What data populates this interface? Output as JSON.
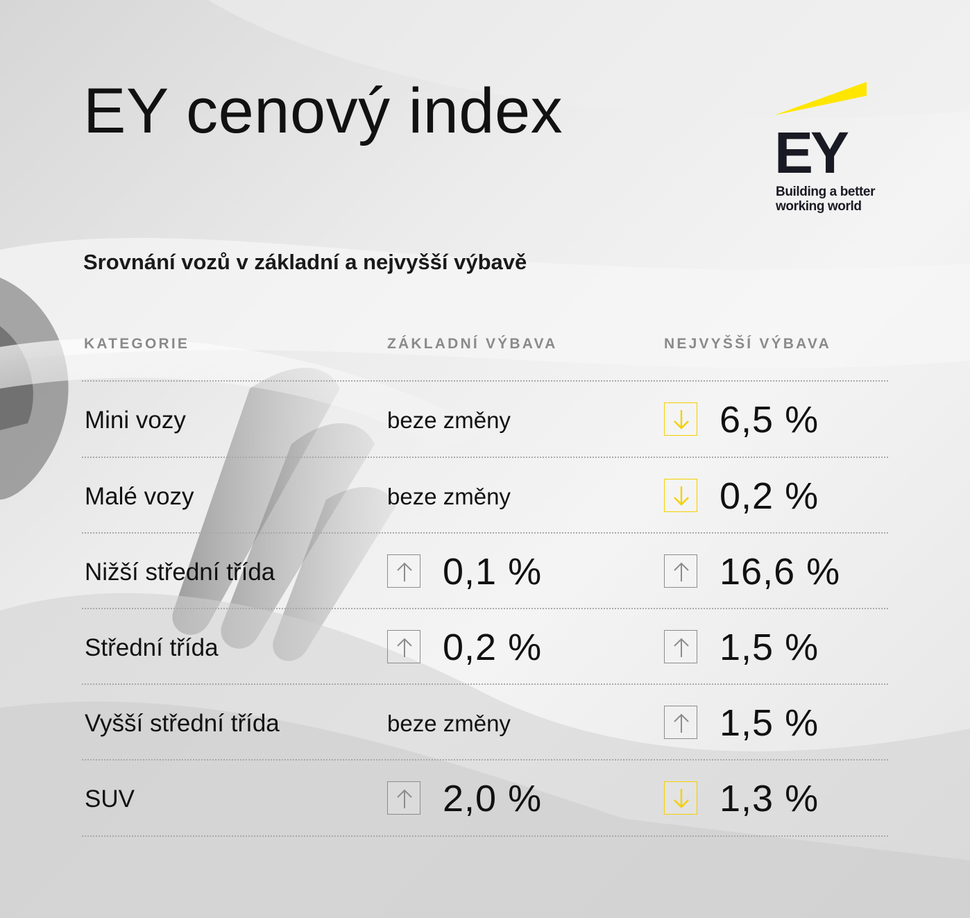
{
  "header": {
    "title": "EY cenový index",
    "subtitle": "Srovnání vozů v základní a nejvyšší výbavě"
  },
  "logo": {
    "wordmark": "EY",
    "tagline": "Building a better working world",
    "beam_color": "#FFE600",
    "text_color": "#1A1A24"
  },
  "table": {
    "columns": [
      "KATEGORIE",
      "ZÁKLADNÍ VÝBAVA",
      "NEJVYŠŠÍ VÝBAVA"
    ],
    "rows": [
      {
        "category": "Mini vozy",
        "basic": {
          "text": "beze změny",
          "direction": "none"
        },
        "top": {
          "text": "6,5 %",
          "direction": "down"
        }
      },
      {
        "category": "Malé vozy",
        "basic": {
          "text": "beze změny",
          "direction": "none"
        },
        "top": {
          "text": "0,2 %",
          "direction": "down"
        }
      },
      {
        "category": "Nižší střední třída",
        "basic": {
          "text": "0,1 %",
          "direction": "up"
        },
        "top": {
          "text": "16,6 %",
          "direction": "up"
        }
      },
      {
        "category": "Střední třída",
        "basic": {
          "text": "0,2 %",
          "direction": "up"
        },
        "top": {
          "text": "1,5 %",
          "direction": "up"
        }
      },
      {
        "category": "Vyšší střední třída",
        "basic": {
          "text": "beze změny",
          "direction": "none"
        },
        "top": {
          "text": "1,5 %",
          "direction": "up"
        }
      },
      {
        "category": "SUV",
        "basic": {
          "text": "2,0 %",
          "direction": "up"
        },
        "top": {
          "text": "1,3 %",
          "direction": "down"
        }
      }
    ]
  },
  "colors": {
    "down_arrow": "#F5D000",
    "up_arrow": "#8C8C8C"
  }
}
